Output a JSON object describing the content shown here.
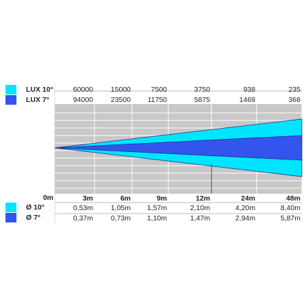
{
  "chart_data": {
    "type": "area",
    "title": "",
    "xlabel": "",
    "ylabel": "",
    "distance_labels": [
      "0m",
      "3m",
      "6m",
      "9m",
      "12m",
      "24m",
      "48m"
    ],
    "lux_series": [
      {
        "name": "LUX 10°",
        "color": "#00e5ff",
        "values": [
          "60000",
          "15000",
          "7500",
          "3750",
          "938",
          "235"
        ]
      },
      {
        "name": "LUX 7°",
        "color": "#3355ee",
        "values": [
          "94000",
          "23500",
          "11750",
          "5875",
          "1469",
          "368"
        ]
      }
    ],
    "diameter_series": [
      {
        "name": "Ø 10°",
        "color": "#00e5ff",
        "values": [
          "0,53m",
          "1,05m",
          "1,57m",
          "2,10m",
          "4,20m",
          "8,40m"
        ]
      },
      {
        "name": "Ø 7°",
        "color": "#3355ee",
        "values": [
          "0,37m",
          "0,73m",
          "1,10m",
          "1,47m",
          "2,94m",
          "5,87m"
        ]
      }
    ],
    "beams": [
      {
        "name": "10°",
        "angle_deg": 10,
        "color": "#00e5ff"
      },
      {
        "name": "7°",
        "angle_deg": 7,
        "color": "#3355ee"
      }
    ],
    "plot_background": "#c8c8c8",
    "grid": true,
    "legend": "left"
  }
}
